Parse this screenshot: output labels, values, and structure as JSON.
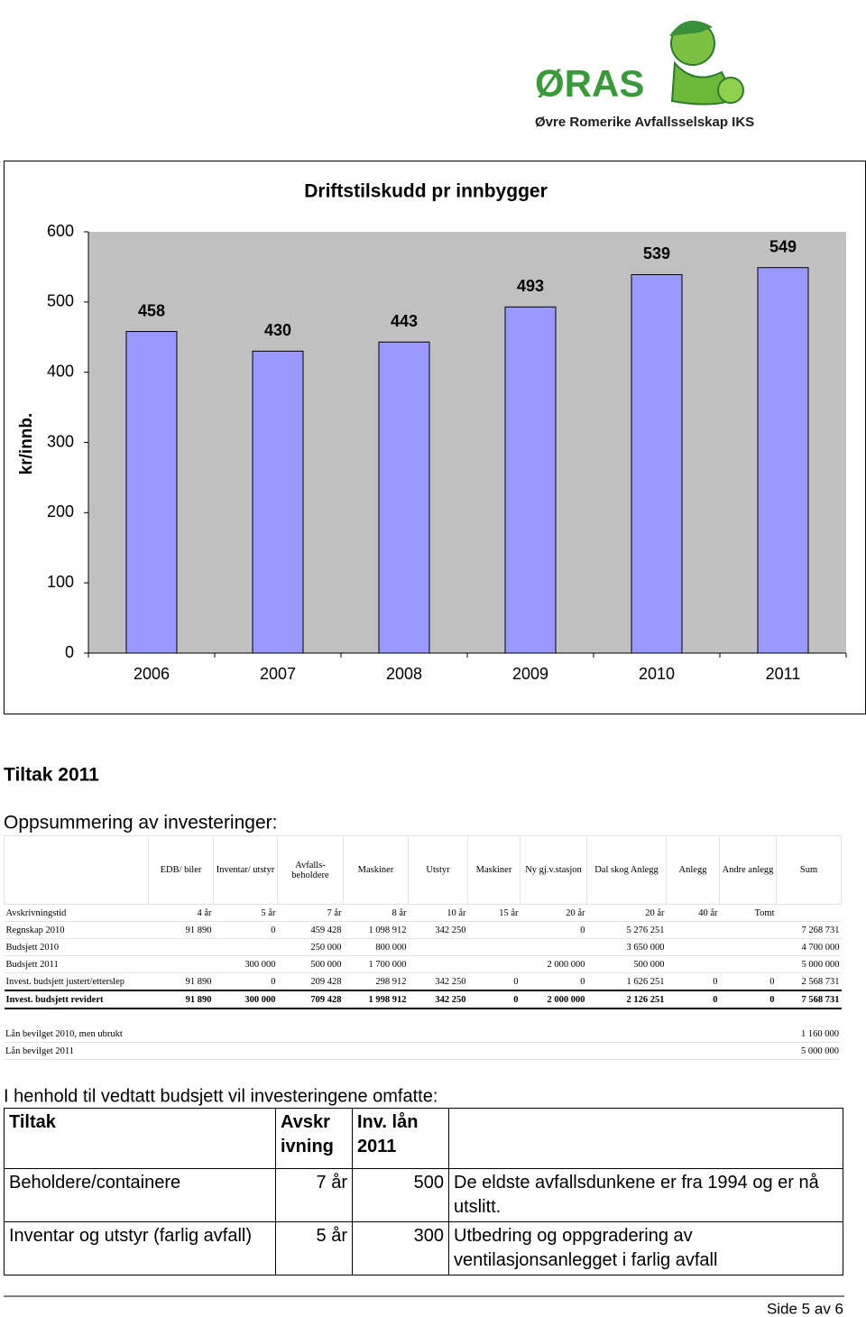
{
  "logo": {
    "name": "ØRAS",
    "subtitle": "Øvre Romerike Avfallsselskap IKS"
  },
  "chart_data": {
    "type": "bar",
    "title": "Driftstilskudd pr innbygger",
    "y_label": "kr/innb.",
    "categories": [
      "2006",
      "2007",
      "2008",
      "2009",
      "2010",
      "2011"
    ],
    "values": [
      458,
      430,
      443,
      493,
      539,
      549
    ],
    "color": "#9999ff",
    "ylim": [
      0,
      600
    ],
    "yticks": [
      0,
      100,
      200,
      300,
      400,
      500,
      600
    ],
    "grid": false
  },
  "headings": {
    "section": "Tiltak 2011",
    "summary": "Oppsummering av investeringer:",
    "intro": "I henhold til vedtatt budsjett vil investeringene omfatte:"
  },
  "investments": {
    "header": [
      null,
      "EDB/ biler",
      "Inventar/ utstyr",
      "Avfalls- beholdere",
      "Maskiner",
      "Utstyr",
      "Maskiner",
      "Ny gj.v.stasjon",
      "Dal skog Anlegg",
      "Anlegg",
      "Andre anlegg",
      "Sum"
    ],
    "rows": [
      [
        "Avskrivningstid",
        "4 år",
        "5 år",
        "7 år",
        "8 år",
        "10 år",
        "15 år",
        "20 år",
        "20 år",
        "40 år",
        "Tomt",
        null
      ],
      [
        "Regnskap 2010",
        "91 890",
        "0",
        "459 428",
        "1 098 912",
        "342 250",
        null,
        "0",
        "5 276 251",
        null,
        null,
        "7 268 731"
      ],
      [
        "Budsjett 2010",
        null,
        null,
        "250 000",
        "800 000",
        null,
        null,
        null,
        "3 650 000",
        null,
        null,
        "4 700 000"
      ],
      [
        "Budsjett 2011",
        null,
        "300 000",
        "500 000",
        "1 700 000",
        null,
        null,
        "2 000 000",
        "500 000",
        null,
        null,
        "5 000 000"
      ],
      [
        "Invest. budsjett justert/etterslep",
        "91 890",
        "0",
        "209 428",
        "298 912",
        "342 250",
        "0",
        "0",
        "1 626 251",
        "0",
        "0",
        "2 568 731"
      ],
      [
        "Invest. budsjett revidert",
        "91 890",
        "300 000",
        "709 428",
        "1 998 912",
        "342 250",
        "0",
        "2 000 000",
        "2 126 251",
        "0",
        "0",
        "7 568 731"
      ]
    ],
    "loans": [
      [
        "Lån bevilget 2010, men ubrukt",
        "1 160 000"
      ],
      [
        "Lån bevilget 2011",
        "5 000 000"
      ]
    ]
  },
  "measures": {
    "header": [
      "Tiltak",
      "Avskr ivning",
      "Inv. lån 2011",
      null
    ],
    "rows": [
      [
        "Beholdere/containere",
        "7 år",
        "500",
        "De eldste avfallsdunkene er fra 1994 og er nå utslitt."
      ],
      [
        "Inventar og utstyr (farlig avfall)",
        "5 år",
        "300",
        "Utbedring og oppgradering av ventilasjonsanlegget i farlig avfall"
      ]
    ]
  },
  "footer": {
    "page": "Side 5 av 6"
  }
}
